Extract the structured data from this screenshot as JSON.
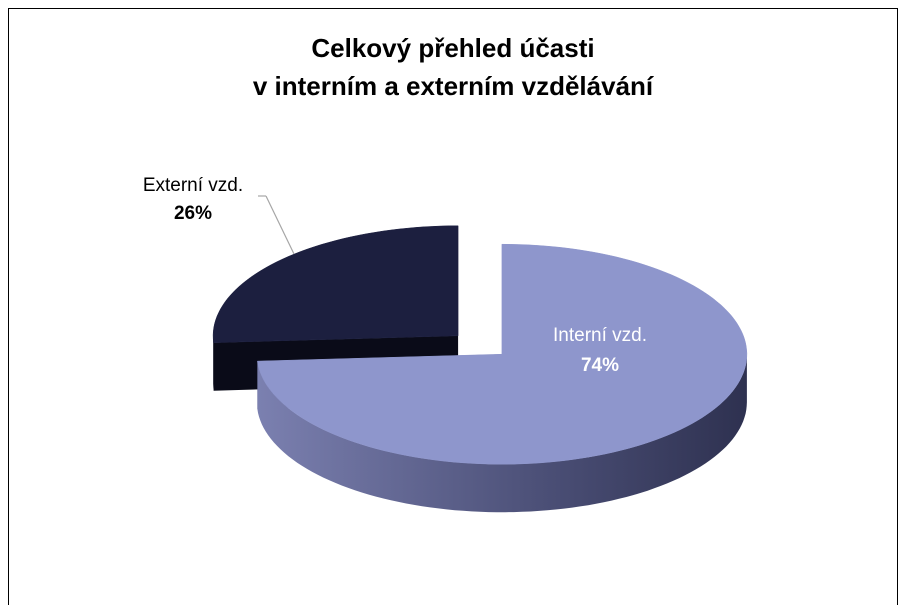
{
  "chart_data": {
    "type": "pie",
    "title": [
      "Celkový přehled účasti",
      "v interním a externím vzdělávání"
    ],
    "categories": [
      "Interní vzd.",
      "Externí vzd."
    ],
    "values": [
      74,
      26
    ],
    "value_labels": [
      "74%",
      "26%"
    ],
    "colors": [
      "#8e96cc",
      "#1c1f3f"
    ]
  }
}
